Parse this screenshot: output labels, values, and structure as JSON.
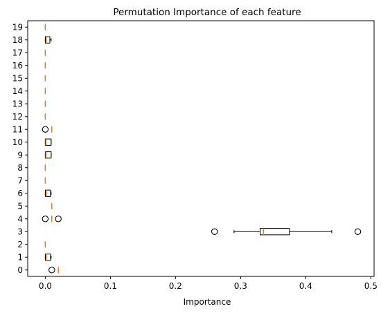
{
  "chart_data": {
    "type": "boxplot",
    "orientation": "horizontal",
    "title": "Permutation Importance of each feature",
    "xlabel": "Importance",
    "ylabel": "",
    "xlim": [
      -0.027,
      0.505
    ],
    "xticks": [
      0.0,
      0.1,
      0.2,
      0.3,
      0.4,
      0.5
    ],
    "xtick_labels": [
      "0.0",
      "0.1",
      "0.2",
      "0.3",
      "0.4",
      "0.5"
    ],
    "categories": [
      "0",
      "1",
      "2",
      "3",
      "4",
      "5",
      "6",
      "7",
      "8",
      "9",
      "10",
      "11",
      "12",
      "13",
      "14",
      "15",
      "16",
      "17",
      "18",
      "19"
    ],
    "median_color": "#d2883a",
    "box_color": "#000000",
    "series": [
      {
        "label": "0",
        "whisker_low": 0.02,
        "q1": 0.02,
        "median": 0.02,
        "q3": 0.02,
        "whisker_high": 0.02,
        "outliers": [
          0.01
        ]
      },
      {
        "label": "1",
        "whisker_low": 0.0,
        "q1": 0.0,
        "median": 0.0015,
        "q3": 0.008,
        "whisker_high": 0.009,
        "outliers": []
      },
      {
        "label": "2",
        "whisker_low": 0.0,
        "q1": 0.0,
        "median": 0.0,
        "q3": 0.0,
        "whisker_high": 0.0,
        "outliers": []
      },
      {
        "label": "3",
        "whisker_low": 0.29,
        "q1": 0.33,
        "median": 0.335,
        "q3": 0.375,
        "whisker_high": 0.44,
        "outliers": [
          0.26,
          0.48
        ]
      },
      {
        "label": "4",
        "whisker_low": 0.01,
        "q1": 0.01,
        "median": 0.01,
        "q3": 0.01,
        "whisker_high": 0.01,
        "outliers": [
          0.0,
          0.02
        ]
      },
      {
        "label": "5",
        "whisker_low": 0.01,
        "q1": 0.01,
        "median": 0.01,
        "q3": 0.01,
        "whisker_high": 0.01,
        "outliers": []
      },
      {
        "label": "6",
        "whisker_low": 0.0,
        "q1": 0.0,
        "median": 0.0015,
        "q3": 0.008,
        "whisker_high": 0.009,
        "outliers": []
      },
      {
        "label": "7",
        "whisker_low": 0.0,
        "q1": 0.0,
        "median": 0.0,
        "q3": 0.0,
        "whisker_high": 0.0,
        "outliers": []
      },
      {
        "label": "8",
        "whisker_low": 0.0,
        "q1": 0.0,
        "median": 0.0,
        "q3": 0.0,
        "whisker_high": 0.0,
        "outliers": []
      },
      {
        "label": "9",
        "whisker_low": 0.0,
        "q1": 0.0,
        "median": 0.001,
        "q3": 0.009,
        "whisker_high": 0.009,
        "outliers": []
      },
      {
        "label": "10",
        "whisker_low": 0.0,
        "q1": 0.0,
        "median": 0.001,
        "q3": 0.009,
        "whisker_high": 0.009,
        "outliers": []
      },
      {
        "label": "11",
        "whisker_low": 0.01,
        "q1": 0.01,
        "median": 0.01,
        "q3": 0.01,
        "whisker_high": 0.01,
        "outliers": [
          0.0
        ]
      },
      {
        "label": "12",
        "whisker_low": 0.0,
        "q1": 0.0,
        "median": 0.0,
        "q3": 0.0,
        "whisker_high": 0.0,
        "outliers": []
      },
      {
        "label": "13",
        "whisker_low": 0.0,
        "q1": 0.0,
        "median": 0.0,
        "q3": 0.0,
        "whisker_high": 0.0,
        "outliers": []
      },
      {
        "label": "14",
        "whisker_low": 0.0,
        "q1": 0.0,
        "median": 0.0,
        "q3": 0.0,
        "whisker_high": 0.0,
        "outliers": []
      },
      {
        "label": "15",
        "whisker_low": 0.0,
        "q1": 0.0,
        "median": 0.0,
        "q3": 0.0,
        "whisker_high": 0.0,
        "outliers": []
      },
      {
        "label": "16",
        "whisker_low": 0.0,
        "q1": 0.0,
        "median": 0.0,
        "q3": 0.0,
        "whisker_high": 0.0,
        "outliers": []
      },
      {
        "label": "17",
        "whisker_low": 0.0,
        "q1": 0.0,
        "median": 0.0,
        "q3": 0.0,
        "whisker_high": 0.0,
        "outliers": []
      },
      {
        "label": "18",
        "whisker_low": 0.0,
        "q1": 0.0,
        "median": 0.0015,
        "q3": 0.007,
        "whisker_high": 0.009,
        "outliers": []
      },
      {
        "label": "19",
        "whisker_low": 0.0,
        "q1": 0.0,
        "median": 0.0,
        "q3": 0.0,
        "whisker_high": 0.0,
        "outliers": []
      }
    ]
  }
}
